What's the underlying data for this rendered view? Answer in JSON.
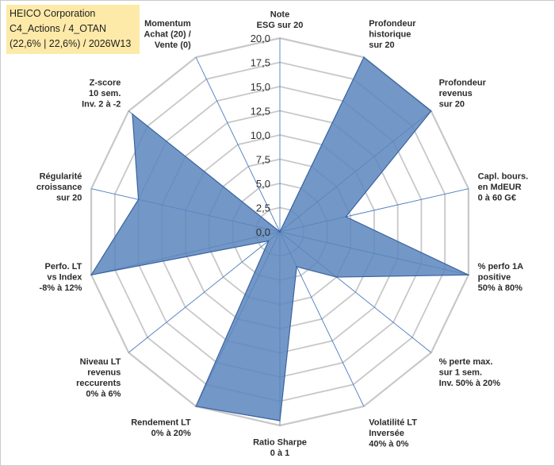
{
  "title_box": {
    "line1": "HEICO Corporation",
    "line2": "C4_Actions / 4_OTAN",
    "line3": "(22,6% | 22,6%) / 2026W13"
  },
  "colors": {
    "fill": "#5a86bd",
    "stroke": "#3a63a0",
    "grid": "#c8c8c8",
    "axis": "#4a7cc0",
    "title_bg": "#fdeaa8"
  },
  "chart_data": {
    "type": "radar",
    "r_min": 0,
    "r_max": 20,
    "tick_step": 2.5,
    "tick_labels": [
      "0,0",
      "2,5",
      "5,0",
      "7,5",
      "10,0",
      "12,5",
      "15,0",
      "17,5",
      "20,0"
    ],
    "axes": [
      {
        "label": [
          "Note",
          "ESG sur 20"
        ],
        "value": 0
      },
      {
        "label": [
          "Profondeur",
          "historique",
          "sur 20"
        ],
        "value": 20
      },
      {
        "label": [
          "Profondeur",
          "revenus",
          "sur 20"
        ],
        "value": 20
      },
      {
        "label": [
          "Capl. bours.",
          "en MdEUR",
          "0 à 60 G€"
        ],
        "value": 7
      },
      {
        "label": [
          "% perfo 1A",
          "positive",
          "50% à 80%"
        ],
        "value": 20
      },
      {
        "label": [
          "% perte max.",
          "sur 1 sem.",
          "Inv. 50% à 20%"
        ],
        "value": 7.5
      },
      {
        "label": [
          "Volatilité LT",
          "Inversée",
          "40% à 0%"
        ],
        "value": 4
      },
      {
        "label": [
          "Ratio Sharpe",
          "0 à 1"
        ],
        "value": 19.5
      },
      {
        "label": [
          "Rendement LT",
          "0% à 20%"
        ],
        "value": 20
      },
      {
        "label": [
          "Niveau LT",
          "revenus",
          "reccurents",
          "0% à 6%"
        ],
        "value": 1.5
      },
      {
        "label": [
          "Perfo. LT",
          "vs Index",
          "-8% à 12%"
        ],
        "value": 20
      },
      {
        "label": [
          "Régularité",
          "croissance",
          "sur 20"
        ],
        "value": 15
      },
      {
        "label": [
          "Z-score",
          "10 sem.",
          "Inv. 2 à -2"
        ],
        "value": 19.5
      },
      {
        "label": [
          "Momentum",
          "Achat (20) /",
          "Vente (0)"
        ],
        "value": 0
      }
    ]
  }
}
